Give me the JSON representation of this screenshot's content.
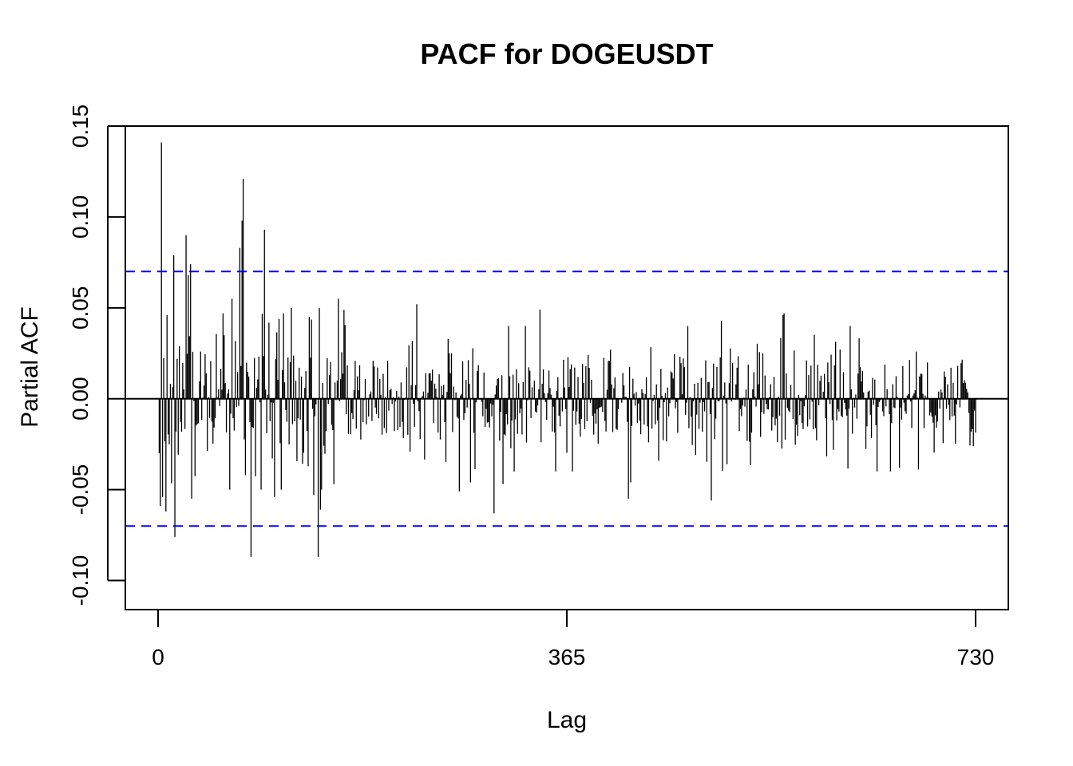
{
  "chart_data": {
    "type": "bar",
    "title": "PACF for DOGEUSDT",
    "xlabel": "Lag",
    "ylabel": "Partial ACF",
    "xlim": [
      -27,
      757
    ],
    "ylim": [
      -0.116,
      0.15
    ],
    "x_ticks": [
      0,
      365,
      730
    ],
    "y_ticks": [
      -0.1,
      -0.05,
      0.0,
      0.05,
      0.1,
      0.15
    ],
    "y_tick_labels": [
      "-0.10",
      "-0.05",
      "0.00",
      "0.05",
      "0.10",
      "0.15"
    ],
    "confidence_bound": 0.07,
    "lag_range": [
      1,
      730
    ],
    "notable_lags": [
      {
        "lag": 1,
        "value": -0.03
      },
      {
        "lag": 2,
        "value": -0.059
      },
      {
        "lag": 3,
        "value": 0.141
      },
      {
        "lag": 4,
        "value": -0.054
      },
      {
        "lag": 7,
        "value": -0.062
      },
      {
        "lag": 8,
        "value": 0.046
      },
      {
        "lag": 14,
        "value": 0.079
      },
      {
        "lag": 15,
        "value": -0.076
      },
      {
        "lag": 25,
        "value": 0.09
      },
      {
        "lag": 27,
        "value": 0.068
      },
      {
        "lag": 29,
        "value": 0.074
      },
      {
        "lag": 30,
        "value": -0.055
      },
      {
        "lag": 58,
        "value": 0.047
      },
      {
        "lag": 66,
        "value": 0.055
      },
      {
        "lag": 73,
        "value": 0.083
      },
      {
        "lag": 75,
        "value": 0.098
      },
      {
        "lag": 76,
        "value": 0.121
      },
      {
        "lag": 78,
        "value": -0.042
      },
      {
        "lag": 83,
        "value": -0.087
      },
      {
        "lag": 95,
        "value": 0.093
      },
      {
        "lag": 104,
        "value": -0.054
      },
      {
        "lag": 119,
        "value": 0.05
      },
      {
        "lag": 139,
        "value": -0.053
      },
      {
        "lag": 143,
        "value": -0.087
      },
      {
        "lag": 145,
        "value": -0.061
      },
      {
        "lag": 157,
        "value": -0.047
      },
      {
        "lag": 161,
        "value": 0.055
      },
      {
        "lag": 231,
        "value": 0.052
      },
      {
        "lag": 269,
        "value": -0.051
      },
      {
        "lag": 279,
        "value": -0.046
      },
      {
        "lag": 300,
        "value": -0.063
      },
      {
        "lag": 308,
        "value": -0.047
      },
      {
        "lag": 341,
        "value": 0.049
      },
      {
        "lag": 420,
        "value": -0.055
      },
      {
        "lag": 422,
        "value": -0.046
      },
      {
        "lag": 494,
        "value": -0.056
      },
      {
        "lag": 503,
        "value": 0.043
      },
      {
        "lag": 558,
        "value": 0.046
      },
      {
        "lag": 559,
        "value": 0.047
      },
      {
        "lag": 662,
        "value": -0.038
      }
    ],
    "colors": {
      "bars": "#000000",
      "bounds": "#0000ff",
      "zero_line": "#000000"
    }
  }
}
